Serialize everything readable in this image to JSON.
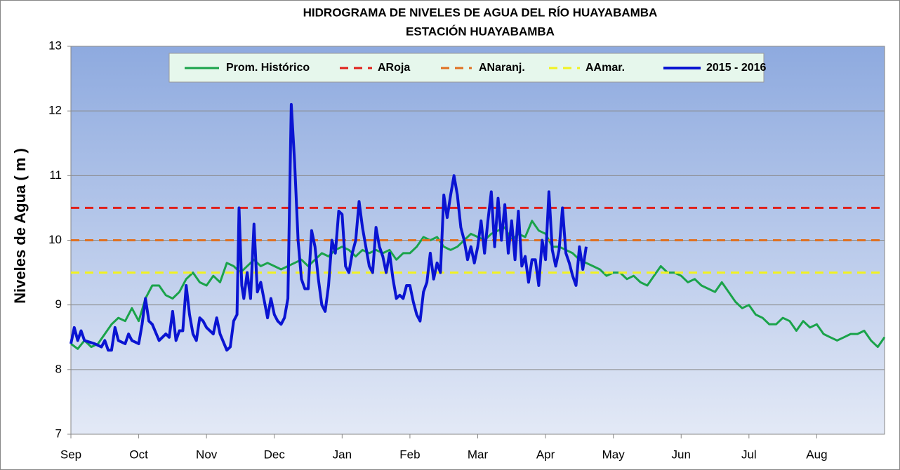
{
  "chart_data": {
    "type": "line",
    "title": "HIDROGRAMA DE NIVELES DE AGUA  DEL RÍO HUAYABAMBA",
    "subtitle": "ESTACIÓN HUAYABAMBA",
    "y_label": "Niveles de Agua  ( m )",
    "xlim": [
      0,
      12
    ],
    "ylim": [
      7,
      13
    ],
    "xticks": [
      {
        "value": 0,
        "label": "Sep"
      },
      {
        "value": 1,
        "label": "Oct"
      },
      {
        "value": 2,
        "label": "Nov"
      },
      {
        "value": 3,
        "label": "Dec"
      },
      {
        "value": 4,
        "label": "Jan"
      },
      {
        "value": 5,
        "label": "Feb"
      },
      {
        "value": 6,
        "label": "Mar"
      },
      {
        "value": 7,
        "label": "Apr"
      },
      {
        "value": 8,
        "label": "May"
      },
      {
        "value": 9,
        "label": "Jun"
      },
      {
        "value": 10,
        "label": "Jul"
      },
      {
        "value": 11,
        "label": "Aug"
      }
    ],
    "yticks": [
      7,
      8,
      9,
      10,
      11,
      12,
      13
    ],
    "grid": true,
    "legend": "top",
    "series": [
      {
        "name": "Prom. Histórico",
        "color": "#1aa34a",
        "dashed": false,
        "x": [
          0,
          0.1,
          0.2,
          0.3,
          0.4,
          0.5,
          0.6,
          0.7,
          0.8,
          0.9,
          1,
          1.1,
          1.2,
          1.3,
          1.4,
          1.5,
          1.6,
          1.7,
          1.8,
          1.9,
          2,
          2.1,
          2.2,
          2.3,
          2.4,
          2.5,
          2.6,
          2.7,
          2.8,
          2.9,
          3,
          3.1,
          3.2,
          3.3,
          3.4,
          3.5,
          3.6,
          3.7,
          3.8,
          3.9,
          4,
          4.1,
          4.2,
          4.3,
          4.4,
          4.5,
          4.6,
          4.7,
          4.8,
          4.9,
          5,
          5.1,
          5.2,
          5.3,
          5.4,
          5.5,
          5.6,
          5.7,
          5.8,
          5.9,
          6,
          6.1,
          6.2,
          6.3,
          6.4,
          6.5,
          6.6,
          6.7,
          6.8,
          6.9,
          7,
          7.1,
          7.2,
          7.3,
          7.4,
          7.5,
          7.6,
          7.7,
          7.8,
          7.9,
          8,
          8.1,
          8.2,
          8.3,
          8.4,
          8.5,
          8.6,
          8.7,
          8.8,
          8.9,
          9,
          9.1,
          9.2,
          9.3,
          9.4,
          9.5,
          9.6,
          9.7,
          9.8,
          9.9,
          10,
          10.1,
          10.2,
          10.3,
          10.4,
          10.5,
          10.6,
          10.7,
          10.8,
          10.9,
          11,
          11.1,
          11.2,
          11.3,
          11.4,
          11.5,
          11.6,
          11.7,
          11.8,
          11.9,
          12
        ],
        "values": [
          8.4,
          8.32,
          8.45,
          8.35,
          8.4,
          8.55,
          8.7,
          8.8,
          8.75,
          8.95,
          8.75,
          9.1,
          9.3,
          9.3,
          9.15,
          9.1,
          9.2,
          9.4,
          9.5,
          9.35,
          9.3,
          9.45,
          9.35,
          9.65,
          9.6,
          9.5,
          9.6,
          9.7,
          9.6,
          9.65,
          9.6,
          9.55,
          9.6,
          9.65,
          9.7,
          9.6,
          9.7,
          9.8,
          9.75,
          9.85,
          9.9,
          9.85,
          9.75,
          9.85,
          9.8,
          9.85,
          9.8,
          9.85,
          9.7,
          9.8,
          9.8,
          9.9,
          10.05,
          10,
          10.05,
          9.9,
          9.85,
          9.9,
          10,
          10.1,
          10.05,
          10,
          10.1,
          10.15,
          10.2,
          10,
          10.1,
          10.05,
          10.3,
          10.15,
          10.1,
          9.9,
          9.9,
          9.85,
          9.8,
          9.7,
          9.65,
          9.6,
          9.55,
          9.45,
          9.5,
          9.5,
          9.4,
          9.45,
          9.35,
          9.3,
          9.45,
          9.6,
          9.5,
          9.5,
          9.45,
          9.35,
          9.4,
          9.3,
          9.25,
          9.2,
          9.35,
          9.2,
          9.05,
          8.95,
          9,
          8.85,
          8.8,
          8.7,
          8.7,
          8.8,
          8.75,
          8.6,
          8.75,
          8.65,
          8.7,
          8.55,
          8.5,
          8.45,
          8.5,
          8.55,
          8.55,
          8.6,
          8.45,
          8.35,
          8.5
        ]
      },
      {
        "name": "ARoja",
        "color": "#e0201a",
        "dashed": true,
        "x": [
          0,
          12
        ],
        "values": [
          10.5,
          10.5
        ]
      },
      {
        "name": "ANaranj.",
        "color": "#e07020",
        "dashed": true,
        "x": [
          0,
          12
        ],
        "values": [
          10,
          10
        ]
      },
      {
        "name": "AAmar.",
        "color": "#f2f21e",
        "dashed": true,
        "x": [
          0,
          12
        ],
        "values": [
          9.5,
          9.5
        ]
      },
      {
        "name": "2015 - 2016",
        "color": "#0a14d2",
        "dashed": false,
        "x": [
          0,
          0.05,
          0.1,
          0.15,
          0.2,
          0.35,
          0.45,
          0.5,
          0.55,
          0.6,
          0.65,
          0.7,
          0.8,
          0.85,
          0.9,
          1,
          1.05,
          1.1,
          1.15,
          1.2,
          1.3,
          1.4,
          1.45,
          1.5,
          1.55,
          1.6,
          1.65,
          1.7,
          1.75,
          1.8,
          1.85,
          1.9,
          1.95,
          2,
          2.1,
          2.15,
          2.2,
          2.3,
          2.35,
          2.4,
          2.45,
          2.48,
          2.52,
          2.55,
          2.6,
          2.65,
          2.7,
          2.75,
          2.8,
          2.9,
          2.95,
          3,
          3.05,
          3.1,
          3.15,
          3.2,
          3.25,
          3.3,
          3.35,
          3.4,
          3.45,
          3.5,
          3.55,
          3.6,
          3.65,
          3.7,
          3.75,
          3.8,
          3.85,
          3.9,
          3.95,
          4,
          4.05,
          4.1,
          4.15,
          4.2,
          4.25,
          4.3,
          4.35,
          4.4,
          4.45,
          4.5,
          4.55,
          4.6,
          4.65,
          4.7,
          4.75,
          4.8,
          4.85,
          4.9,
          4.95,
          5,
          5.05,
          5.1,
          5.15,
          5.2,
          5.25,
          5.3,
          5.35,
          5.4,
          5.45,
          5.5,
          5.55,
          5.6,
          5.65,
          5.7,
          5.75,
          5.8,
          5.85,
          5.9,
          5.95,
          6,
          6.05,
          6.1,
          6.15,
          6.2,
          6.25,
          6.3,
          6.35,
          6.4,
          6.45,
          6.5,
          6.55,
          6.6,
          6.65,
          6.7,
          6.75,
          6.8,
          6.85,
          6.9,
          6.95,
          7,
          7.05,
          7.1,
          7.15,
          7.2,
          7.25,
          7.3,
          7.35,
          7.4,
          7.45,
          7.5,
          7.55,
          7.6
        ],
        "values": [
          8.4,
          8.65,
          8.45,
          8.6,
          8.45,
          8.4,
          8.35,
          8.45,
          8.3,
          8.3,
          8.65,
          8.45,
          8.4,
          8.55,
          8.45,
          8.4,
          8.7,
          9.1,
          8.75,
          8.7,
          8.45,
          8.55,
          8.5,
          8.9,
          8.45,
          8.6,
          8.6,
          9.3,
          8.85,
          8.55,
          8.45,
          8.8,
          8.75,
          8.65,
          8.55,
          8.8,
          8.55,
          8.3,
          8.35,
          8.75,
          8.85,
          10.5,
          9.3,
          9.1,
          9.5,
          9.1,
          10.25,
          9.2,
          9.35,
          8.8,
          9.1,
          8.85,
          8.75,
          8.7,
          8.8,
          9.1,
          12.1,
          11.2,
          10,
          9.4,
          9.25,
          9.25,
          10.15,
          9.9,
          9.4,
          9,
          8.9,
          9.3,
          10,
          9.8,
          10.45,
          10.4,
          9.6,
          9.5,
          9.8,
          10,
          10.6,
          10.2,
          9.9,
          9.6,
          9.5,
          10.2,
          9.9,
          9.75,
          9.5,
          9.8,
          9.4,
          9.1,
          9.15,
          9.1,
          9.3,
          9.3,
          9.05,
          8.85,
          8.75,
          9.2,
          9.35,
          9.8,
          9.4,
          9.65,
          9.5,
          10.7,
          10.35,
          10.7,
          11,
          10.7,
          10.2,
          10,
          9.7,
          9.9,
          9.65,
          9.9,
          10.3,
          9.8,
          10.3,
          10.75,
          9.9,
          10.65,
          10,
          10.55,
          9.8,
          10.3,
          9.7,
          10.45,
          9.6,
          9.75,
          9.35,
          9.7,
          9.7,
          9.3,
          10,
          9.7,
          10.75,
          9.85,
          9.6,
          9.85,
          10.5,
          9.8,
          9.65,
          9.45,
          9.3,
          9.9,
          9.55,
          9.9
        ]
      }
    ]
  }
}
